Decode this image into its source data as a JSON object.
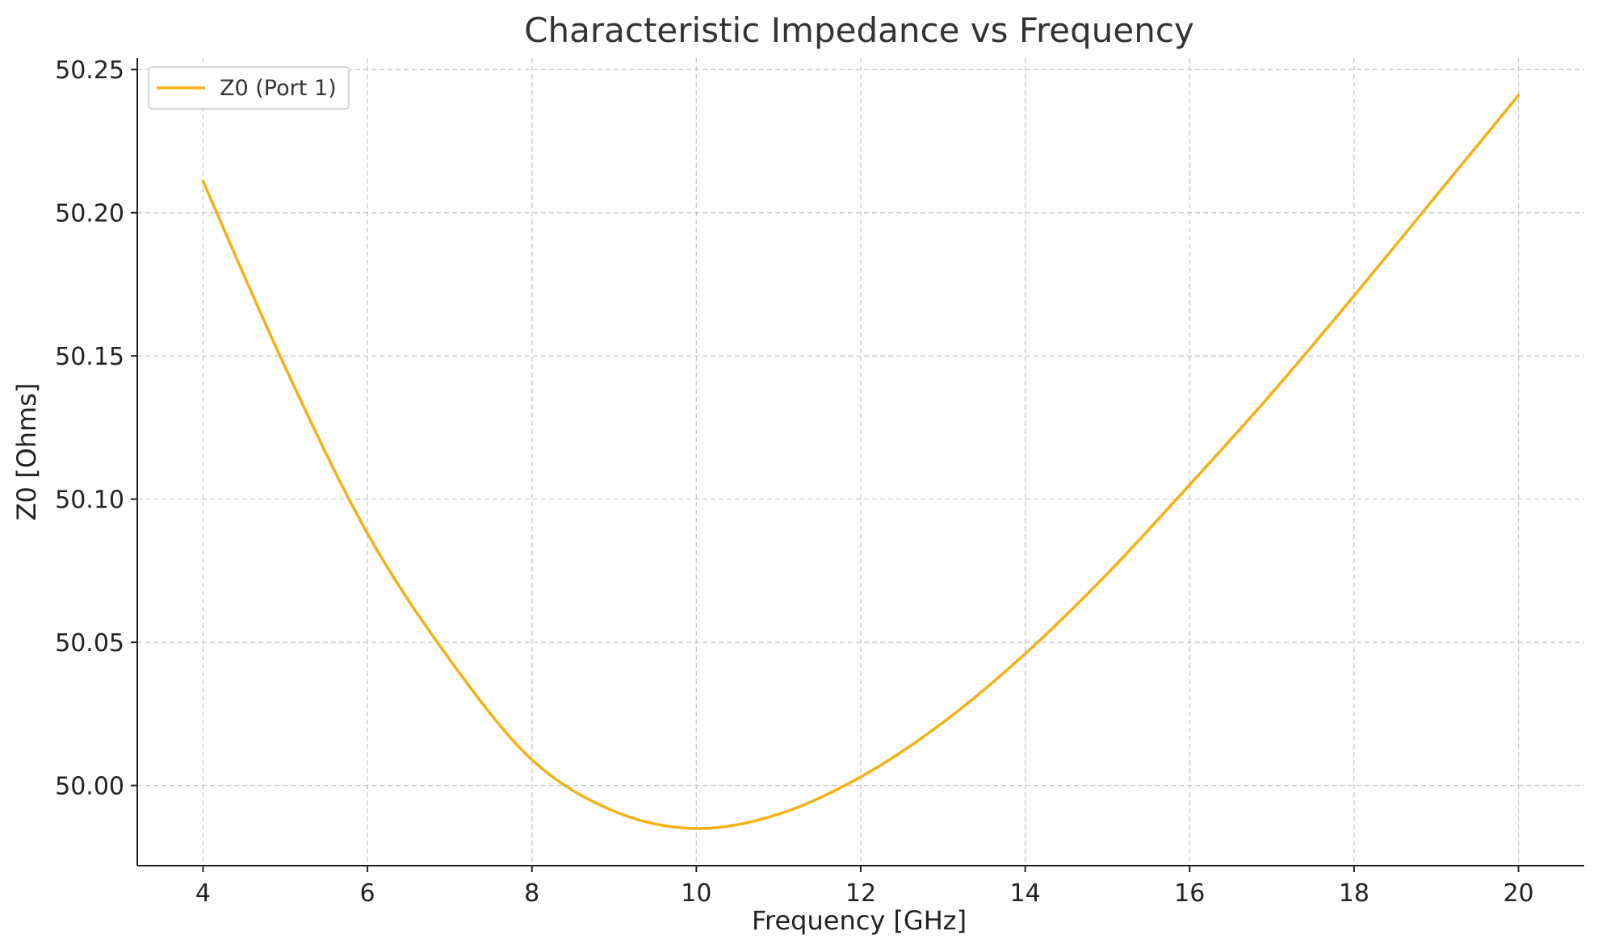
{
  "chart_data": {
    "type": "line",
    "title": "Characteristic Impedance vs Frequency",
    "xlabel": "Frequency [GHz]",
    "ylabel": "Z0 [Ohms]",
    "xlim": [
      3.2,
      20.8
    ],
    "ylim": [
      49.972,
      50.254
    ],
    "x_ticks": [
      4,
      6,
      8,
      10,
      12,
      14,
      16,
      18,
      20
    ],
    "x_tick_labels": [
      "4",
      "6",
      "8",
      "10",
      "12",
      "14",
      "16",
      "18",
      "20"
    ],
    "y_ticks": [
      50.0,
      50.05,
      50.1,
      50.15,
      50.2,
      50.25
    ],
    "y_tick_labels": [
      "50.00",
      "50.05",
      "50.10",
      "50.15",
      "50.20",
      "50.25"
    ],
    "grid": true,
    "legend_position": "top-left",
    "series": [
      {
        "name": "Z0 (Port 1)",
        "color": "#f5b014",
        "x": [
          4,
          5,
          6,
          7,
          8,
          9,
          10,
          11,
          12,
          13,
          14,
          15,
          16,
          17,
          18,
          19,
          20
        ],
        "y": [
          50.211,
          50.146,
          50.088,
          50.044,
          50.009,
          49.991,
          49.985,
          49.99,
          50.003,
          50.022,
          50.046,
          50.074,
          50.105,
          50.137,
          50.171,
          50.206,
          50.241
        ]
      }
    ]
  }
}
